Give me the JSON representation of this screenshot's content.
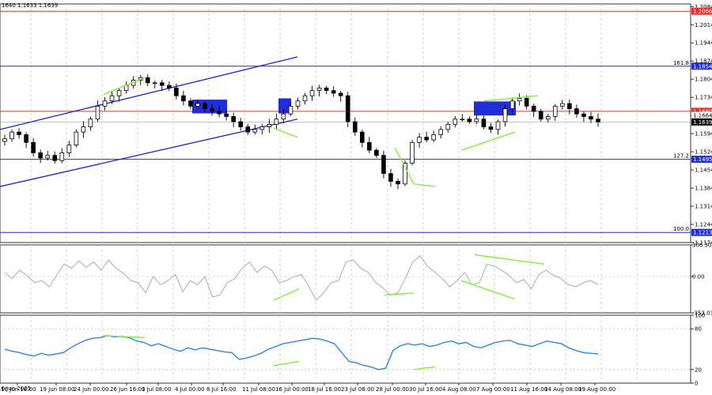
{
  "header": {
    "ohlc_text": "1640 1.1633 1.1639"
  },
  "colors": {
    "bull_candle": "#000000",
    "level_red": "#e8302a",
    "level_blue": "#1f2dd6",
    "channel": "#1a26d4",
    "zone": "#1521d9",
    "divergence": "#7cf23a",
    "cci": "#b8b8b8",
    "rsi": "#2f86e0",
    "grid": "#c8c8c8",
    "tag_red": "#e8302a",
    "tag_blue": "#1f2dd6",
    "tag_price": "#000000"
  },
  "chart_data": [
    {
      "type": "line",
      "title": "",
      "subtitle": "",
      "series_name": "",
      "description_note": "Price panel (candlestick look), approx closes read off axis",
      "ylim": [
        1.1174,
        1.2094
      ],
      "y_ticks": [
        "1.2084",
        "1.2014",
        "1.1944",
        "1.1874",
        "1.1804",
        "1.1734",
        "1.1664",
        "1.1594",
        "1.1524",
        "1.1454",
        "1.1384",
        "1.1314",
        "1.1244",
        "1.1174"
      ],
      "x_labels": [
        "16 Jun 2025",
        "16 Jun 16:00",
        "19 Jun 08:00",
        "24 Jun 00:00",
        "26 Jun 16:00",
        "1 Jul 08:00",
        "4 Jul 00:00",
        "8 Jul 16:00",
        "11 Jul 08:00",
        "16 Jul 00:00",
        "18 Jul 16:00",
        "23 Jul 08:00",
        "28 Jul 00:00",
        "30 Jul 16:00",
        "4 Aug 08:00",
        "7 Aug 00:00",
        "11 Aug 16:00",
        "14 Aug 08:00",
        "19 Aug 00:00"
      ],
      "closes": [
        1.1574,
        1.16,
        1.159,
        1.156,
        1.152,
        1.15,
        1.151,
        1.149,
        1.152,
        1.155,
        1.16,
        1.162,
        1.165,
        1.17,
        1.172,
        1.174,
        1.176,
        1.178,
        1.18,
        1.181,
        1.179,
        1.179,
        1.178,
        1.177,
        1.174,
        1.172,
        1.17,
        1.171,
        1.169,
        1.168,
        1.167,
        1.166,
        1.164,
        1.162,
        1.16,
        1.161,
        1.162,
        1.163,
        1.165,
        1.167,
        1.17,
        1.172,
        1.174,
        1.176,
        1.177,
        1.176,
        1.175,
        1.174,
        1.164,
        1.16,
        1.156,
        1.153,
        1.151,
        1.144,
        1.141,
        1.14,
        1.148,
        1.156,
        1.158,
        1.157,
        1.159,
        1.161,
        1.163,
        1.165,
        1.165,
        1.164,
        1.165,
        1.162,
        1.161,
        1.164,
        1.169,
        1.172,
        1.173,
        1.17,
        1.168,
        1.165,
        1.166,
        1.17,
        1.171,
        1.169,
        1.167,
        1.166,
        1.165,
        1.1639
      ],
      "levels": [
        {
          "price": 1.2066,
          "label": "",
          "tag": "1.2066",
          "color": "red"
        },
        {
          "price": 1.1854,
          "label": "161.8",
          "tag": "1.1854",
          "color": "blue"
        },
        {
          "price": 1.168,
          "label": "",
          "tag": "1.1680",
          "color": "red"
        },
        {
          "price": 1.1495,
          "label": "127.2",
          "tag": "1.1495",
          "color": "blue"
        },
        {
          "price": 1.1213,
          "label": "100.0",
          "tag": "1.1213",
          "color": "blue"
        }
      ],
      "extra_tags": [
        {
          "price": 1.1664,
          "tag": "1.1664",
          "style": "white"
        },
        {
          "price": 1.1639,
          "tag": "1.1639",
          "style": "black"
        }
      ]
    },
    {
      "type": "line",
      "description_note": "CCI oscillator panel",
      "ylim": [
        -353.035,
        306.3051
      ],
      "y_ticks": [
        "306.3051",
        "0.00",
        "-353.035"
      ],
      "values": [
        40,
        -20,
        60,
        10,
        -60,
        -40,
        -100,
        10,
        120,
        80,
        150,
        90,
        140,
        60,
        160,
        80,
        30,
        -40,
        -60,
        -160,
        0,
        -80,
        -40,
        20,
        -150,
        -40,
        -80,
        0,
        -200,
        -180,
        -60,
        -20,
        80,
        140,
        40,
        100,
        60,
        -60,
        -40,
        0,
        20,
        -100,
        -230,
        -160,
        -60,
        -40,
        140,
        160,
        80,
        40,
        -60,
        -110,
        -180,
        -160,
        -20,
        140,
        200,
        100,
        40,
        -20,
        -100,
        -40,
        40,
        -80,
        -60,
        120,
        100,
        60,
        10,
        -60,
        -30,
        -120,
        20,
        60,
        10,
        -20,
        -80,
        -100,
        -60,
        -40,
        -80
      ]
    },
    {
      "type": "line",
      "description_note": "RSI oscillator panel",
      "ylim": [
        0,
        100
      ],
      "y_ticks": [
        "100",
        "80",
        "20",
        "0"
      ],
      "values": [
        50,
        47,
        45,
        42,
        40,
        44,
        41,
        43,
        45,
        52,
        58,
        63,
        66,
        67,
        70,
        68,
        69,
        67,
        62,
        60,
        55,
        58,
        54,
        50,
        47,
        52,
        49,
        52,
        50,
        48,
        46,
        45,
        35,
        37,
        40,
        44,
        50,
        54,
        58,
        60,
        62,
        64,
        66,
        65,
        62,
        58,
        45,
        32,
        30,
        26,
        24,
        20,
        22,
        48,
        55,
        58,
        56,
        58,
        54,
        56,
        60,
        62,
        58,
        60,
        54,
        52,
        56,
        60,
        62,
        63,
        58,
        56,
        54,
        58,
        62,
        60,
        58,
        52,
        48,
        45,
        44,
        43
      ]
    }
  ]
}
